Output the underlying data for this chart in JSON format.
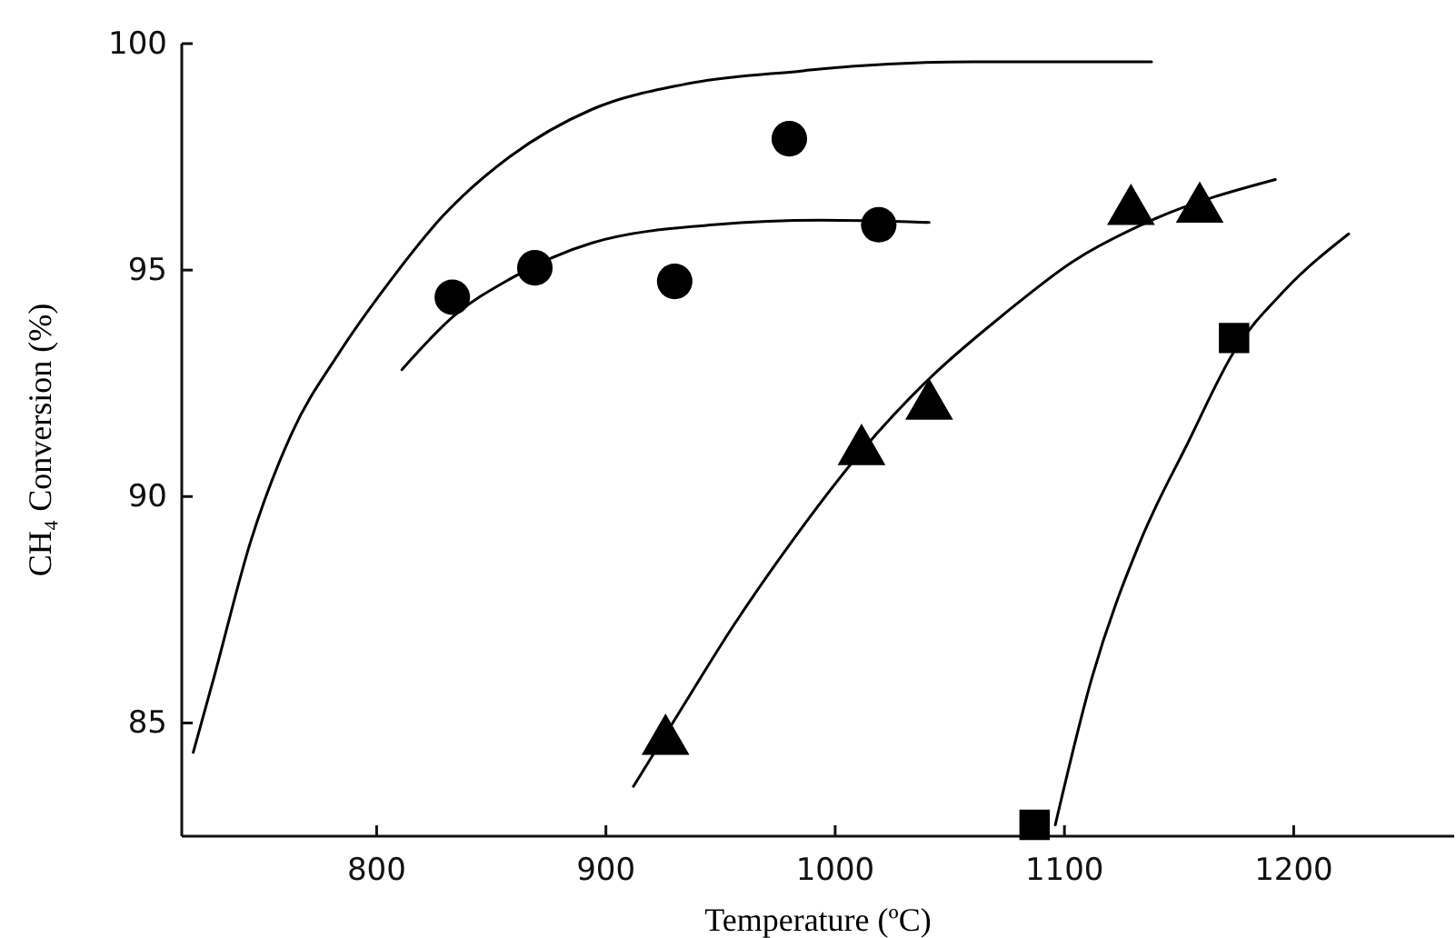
{
  "chart_data": {
    "type": "scatter",
    "xlabel": "Temperature (ºC)",
    "ylabel": "CH₄ Conversion (%)",
    "xlim": [
      715,
      1270
    ],
    "ylim": [
      82.5,
      100
    ],
    "xticks": [
      800,
      900,
      1000,
      1100,
      1200
    ],
    "yticks": [
      85,
      90,
      95,
      100
    ],
    "grid": false,
    "series": [
      {
        "type": "line",
        "color": "#000000",
        "marker": "none",
        "line_style": "solid",
        "x": [
          720,
          729,
          745,
          763,
          784,
          805,
          829,
          858,
          894,
          934,
          986,
          1007,
          1060,
          1138
        ],
        "values": [
          84.35,
          86.0,
          89.0,
          91.4,
          93.2,
          94.7,
          96.2,
          97.5,
          98.55,
          99.1,
          99.4,
          99.5,
          99.6,
          99.6
        ]
      },
      {
        "type": "line",
        "color": "#000000",
        "marker": "none",
        "line_style": "solid",
        "x": [
          811,
          834,
          858,
          894,
          947,
          994,
          1041
        ],
        "values": [
          92.8,
          94.0,
          94.8,
          95.6,
          96.0,
          96.1,
          96.05
        ]
      },
      {
        "type": "line",
        "color": "#000000",
        "marker": "none",
        "line_style": "solid",
        "x": [
          912,
          934,
          955,
          981,
          1011.5,
          1041,
          1073,
          1104,
          1138,
          1192
        ],
        "values": [
          83.6,
          85.4,
          87.1,
          89.0,
          91.0,
          92.6,
          94.0,
          95.2,
          96.1,
          97.0
        ]
      },
      {
        "type": "line",
        "color": "#000000",
        "marker": "none",
        "line_style": "solid",
        "x": [
          1096,
          1112,
          1133,
          1154,
          1174,
          1196,
          1224
        ],
        "values": [
          82.75,
          86.0,
          89.0,
          91.2,
          93.2,
          94.55,
          95.8
        ]
      },
      {
        "color": "#000000",
        "marker": "circle",
        "x": [
          833,
          869,
          930,
          980,
          1019
        ],
        "values": [
          94.4,
          95.05,
          94.75,
          97.9,
          96.0
        ]
      },
      {
        "color": "#000000",
        "marker": "triangle",
        "x": [
          926,
          1011.5,
          1041,
          1129,
          1159
        ],
        "values": [
          84.6,
          91.0,
          92.0,
          96.3,
          96.35
        ]
      },
      {
        "color": "#000000",
        "marker": "square",
        "x": [
          1087,
          1174
        ],
        "values": [
          82.75,
          93.5
        ]
      }
    ]
  }
}
